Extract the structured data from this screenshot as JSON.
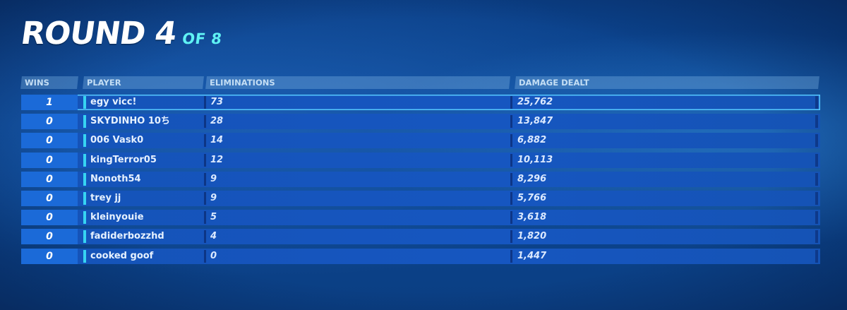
{
  "title": {
    "main": "ROUND 4",
    "sub": "OF 8"
  },
  "columns": {
    "wins": "WINS",
    "player": "PLAYER",
    "eliminations": "ELIMINATIONS",
    "damage": "DAMAGE DEALT"
  },
  "colors": {
    "accent_cyan": "#5ff2f4",
    "row_blue": "#1656c0",
    "wins_blue": "#1b6ad8",
    "player_marker": "#37d4f2"
  },
  "rows": [
    {
      "wins": "1",
      "player": "egy vicc!",
      "eliminations": "73",
      "damage": "25,762"
    },
    {
      "wins": "0",
      "player": "SKYDINHO 10ち",
      "eliminations": "28",
      "damage": "13,847"
    },
    {
      "wins": "0",
      "player": "006 Vask0",
      "eliminations": "14",
      "damage": "6,882"
    },
    {
      "wins": "0",
      "player": "kingTerror05",
      "eliminations": "12",
      "damage": "10,113"
    },
    {
      "wins": "0",
      "player": "Nonoth54",
      "eliminations": "9",
      "damage": "8,296"
    },
    {
      "wins": "0",
      "player": "trey jj",
      "eliminations": "9",
      "damage": "5,766"
    },
    {
      "wins": "0",
      "player": "kleinyouie",
      "eliminations": "5",
      "damage": "3,618"
    },
    {
      "wins": "0",
      "player": "fadiderbozzhd",
      "eliminations": "4",
      "damage": "1,820"
    },
    {
      "wins": "0",
      "player": "cooked goof",
      "eliminations": "0",
      "damage": "1,447"
    }
  ]
}
